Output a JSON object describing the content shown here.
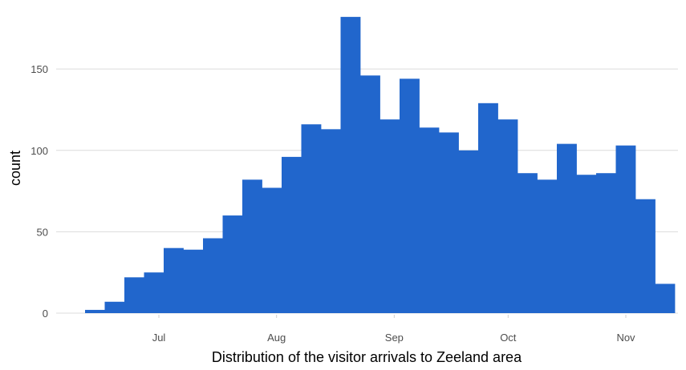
{
  "chart_data": {
    "type": "bar",
    "title": "",
    "xlabel": "Distribution of the visitor arrivals to Zeeland area",
    "ylabel": "count",
    "ylim": [
      0,
      185
    ],
    "yticks": [
      0,
      50,
      100,
      150
    ],
    "grid": "horizontal major",
    "x_axis": {
      "type": "date",
      "tick_labels": [
        "Jul",
        "Aug",
        "Sep",
        "Oct",
        "Nov"
      ],
      "tick_dates": [
        "2019-07-01",
        "2019-08-01",
        "2019-09-01",
        "2019-10-01",
        "2019-11-01"
      ]
    },
    "series": [
      {
        "values": [
          2,
          7,
          22,
          25,
          40,
          39,
          46,
          60,
          82,
          77,
          96,
          116,
          113,
          182,
          146,
          119,
          144,
          114,
          111,
          100,
          129,
          119,
          86,
          82,
          104,
          85,
          86,
          103,
          70,
          18
        ]
      }
    ],
    "colors": {
      "bar": "#2166cc",
      "grid": "#dcdcdc",
      "tick_label": "#4d4d4d",
      "axis_title": "#000000"
    }
  }
}
